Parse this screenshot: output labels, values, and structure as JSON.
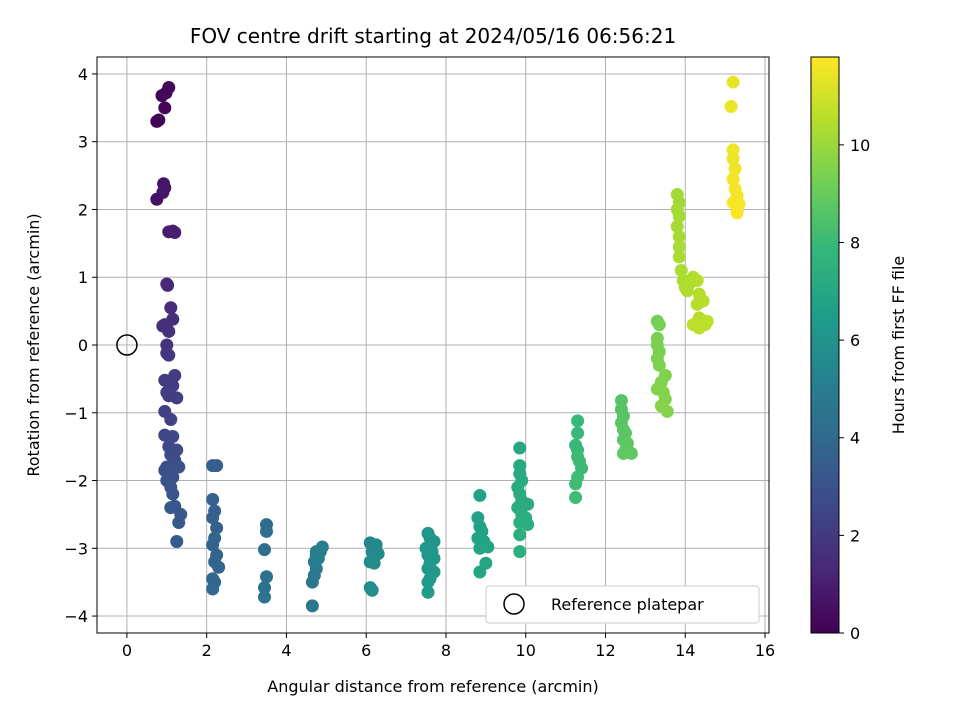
{
  "chart_data": {
    "type": "scatter",
    "title": "FOV centre drift starting at 2024/05/16 06:56:21",
    "xlabel": "Angular distance from reference (arcmin)",
    "ylabel": "Rotation from reference (arcmin)",
    "xlim": [
      -0.75,
      16.1
    ],
    "ylim": [
      -4.25,
      4.25
    ],
    "xticks": [
      0,
      2,
      4,
      6,
      8,
      10,
      12,
      14,
      16
    ],
    "yticks": [
      -4,
      -3,
      -2,
      -1,
      0,
      1,
      2,
      3,
      4
    ],
    "grid": true,
    "legend": {
      "placement": "lower-right",
      "label": "Reference platepar"
    },
    "reference_point": {
      "x": 0,
      "y": 0
    },
    "colorbar": {
      "label": "Hours from first FF file",
      "range": [
        0,
        11.8
      ],
      "ticks": [
        0,
        2,
        4,
        6,
        8,
        10
      ],
      "colormap": "viridis",
      "stops": [
        "#440154",
        "#482878",
        "#3e4989",
        "#31688e",
        "#26828e",
        "#1f9e89",
        "#35b779",
        "#6ece58",
        "#b5de2b",
        "#fde725"
      ]
    },
    "points": [
      [
        0.75,
        3.3,
        0.05
      ],
      [
        0.8,
        3.32,
        0.08
      ],
      [
        0.88,
        3.68,
        0.12
      ],
      [
        0.95,
        3.5,
        0.18
      ],
      [
        1.05,
        3.8,
        0.25
      ],
      [
        0.98,
        3.72,
        0.2
      ],
      [
        0.75,
        2.15,
        0.55
      ],
      [
        0.92,
        2.38,
        0.6
      ],
      [
        0.9,
        2.25,
        0.65
      ],
      [
        0.95,
        2.32,
        0.7
      ],
      [
        1.05,
        1.67,
        0.95
      ],
      [
        1.15,
        1.68,
        1.0
      ],
      [
        1.2,
        1.66,
        1.05
      ],
      [
        1.02,
        0.88,
        1.3
      ],
      [
        1.0,
        0.9,
        1.35
      ],
      [
        1.1,
        0.55,
        1.5
      ],
      [
        1.15,
        0.38,
        1.55
      ],
      [
        0.9,
        0.28,
        1.6
      ],
      [
        1.0,
        0.25,
        1.65
      ],
      [
        1.05,
        0.2,
        1.7
      ],
      [
        0.95,
        0.3,
        1.62
      ],
      [
        1.0,
        0.0,
        1.8
      ],
      [
        1.05,
        -0.15,
        1.85
      ],
      [
        1.0,
        -0.12,
        1.88
      ],
      [
        0.95,
        -0.52,
        2.0
      ],
      [
        1.1,
        -0.55,
        2.05
      ],
      [
        1.2,
        -0.45,
        2.1
      ],
      [
        1.15,
        -0.6,
        2.12
      ],
      [
        1.05,
        -0.75,
        2.15
      ],
      [
        1.0,
        -0.7,
        2.18
      ],
      [
        1.25,
        -0.78,
        2.2
      ],
      [
        0.95,
        -0.98,
        2.3
      ],
      [
        1.1,
        -1.1,
        2.35
      ],
      [
        0.95,
        -1.33,
        2.5
      ],
      [
        1.15,
        -1.35,
        2.55
      ],
      [
        1.05,
        -1.5,
        2.6
      ],
      [
        1.25,
        -1.55,
        2.65
      ],
      [
        1.1,
        -1.62,
        2.7
      ],
      [
        1.2,
        -1.7,
        2.72
      ],
      [
        1.0,
        -1.8,
        2.75
      ],
      [
        0.95,
        -1.85,
        2.85
      ],
      [
        1.05,
        -1.9,
        2.9
      ],
      [
        1.15,
        -1.95,
        2.92
      ],
      [
        1.3,
        -1.8,
        2.95
      ],
      [
        1.2,
        -1.75,
        2.88
      ],
      [
        1.0,
        -2.0,
        3.0
      ],
      [
        1.1,
        -2.1,
        3.05
      ],
      [
        1.15,
        -2.2,
        3.1
      ],
      [
        1.2,
        -2.38,
        3.15
      ],
      [
        1.1,
        -2.4,
        3.2
      ],
      [
        1.35,
        -2.5,
        3.25
      ],
      [
        1.3,
        -2.62,
        3.3
      ],
      [
        1.25,
        -2.9,
        3.35
      ],
      [
        2.15,
        -1.78,
        3.55
      ],
      [
        2.25,
        -1.78,
        3.58
      ],
      [
        2.15,
        -2.28,
        3.62
      ],
      [
        2.2,
        -2.45,
        3.65
      ],
      [
        2.15,
        -2.55,
        3.7
      ],
      [
        2.25,
        -2.7,
        3.72
      ],
      [
        2.2,
        -2.85,
        3.75
      ],
      [
        2.15,
        -2.95,
        3.78
      ],
      [
        2.25,
        -3.1,
        3.8
      ],
      [
        2.2,
        -3.2,
        3.82
      ],
      [
        2.3,
        -3.28,
        3.85
      ],
      [
        2.15,
        -3.45,
        3.88
      ],
      [
        2.2,
        -3.5,
        3.9
      ],
      [
        2.15,
        -3.6,
        3.92
      ],
      [
        3.5,
        -2.65,
        4.2
      ],
      [
        3.5,
        -2.75,
        4.25
      ],
      [
        3.45,
        -3.02,
        4.3
      ],
      [
        3.5,
        -3.42,
        4.35
      ],
      [
        3.45,
        -3.58,
        4.4
      ],
      [
        3.45,
        -3.72,
        4.45
      ],
      [
        4.65,
        -3.85,
        4.7
      ],
      [
        4.65,
        -3.5,
        4.75
      ],
      [
        4.7,
        -3.4,
        4.8
      ],
      [
        4.75,
        -3.3,
        4.85
      ],
      [
        4.7,
        -3.2,
        4.9
      ],
      [
        4.75,
        -3.1,
        4.95
      ],
      [
        4.85,
        -3.05,
        5.0
      ],
      [
        4.9,
        -2.98,
        5.05
      ],
      [
        4.75,
        -3.05,
        5.08
      ],
      [
        4.8,
        -3.15,
        5.1
      ],
      [
        6.1,
        -2.92,
        5.5
      ],
      [
        6.15,
        -3.05,
        5.55
      ],
      [
        6.2,
        -3.1,
        5.6
      ],
      [
        6.25,
        -2.95,
        5.62
      ],
      [
        6.3,
        -3.08,
        5.65
      ],
      [
        6.1,
        -3.2,
        5.68
      ],
      [
        6.2,
        -3.22,
        5.7
      ],
      [
        6.1,
        -3.58,
        5.75
      ],
      [
        6.15,
        -3.62,
        5.8
      ],
      [
        7.55,
        -2.78,
        6.1
      ],
      [
        7.6,
        -2.85,
        6.12
      ],
      [
        7.7,
        -2.9,
        6.15
      ],
      [
        7.5,
        -3.0,
        6.18
      ],
      [
        7.65,
        -3.05,
        6.2
      ],
      [
        7.55,
        -3.1,
        6.22
      ],
      [
        7.7,
        -3.15,
        6.25
      ],
      [
        7.6,
        -3.22,
        6.28
      ],
      [
        7.55,
        -3.3,
        6.3
      ],
      [
        7.7,
        -3.35,
        6.32
      ],
      [
        7.6,
        -3.45,
        6.35
      ],
      [
        7.55,
        -3.5,
        6.38
      ],
      [
        7.55,
        -3.65,
        6.4
      ],
      [
        8.85,
        -2.22,
        6.7
      ],
      [
        8.8,
        -2.55,
        6.72
      ],
      [
        8.85,
        -2.68,
        6.75
      ],
      [
        8.9,
        -2.75,
        6.78
      ],
      [
        8.8,
        -2.85,
        6.8
      ],
      [
        8.95,
        -2.9,
        6.82
      ],
      [
        9.05,
        -2.98,
        6.85
      ],
      [
        8.85,
        -3.0,
        6.88
      ],
      [
        9.0,
        -3.22,
        6.9
      ],
      [
        8.85,
        -3.35,
        6.92
      ],
      [
        9.85,
        -1.52,
        7.1
      ],
      [
        9.85,
        -1.78,
        7.12
      ],
      [
        9.85,
        -1.9,
        7.15
      ],
      [
        9.9,
        -2.0,
        7.18
      ],
      [
        9.8,
        -2.1,
        7.2
      ],
      [
        9.85,
        -2.2,
        7.22
      ],
      [
        9.9,
        -2.3,
        7.25
      ],
      [
        10.05,
        -2.35,
        7.28
      ],
      [
        9.8,
        -2.4,
        7.3
      ],
      [
        9.9,
        -2.5,
        7.32
      ],
      [
        10.0,
        -2.55,
        7.35
      ],
      [
        9.85,
        -2.62,
        7.38
      ],
      [
        10.05,
        -2.65,
        7.4
      ],
      [
        9.85,
        -2.8,
        7.42
      ],
      [
        9.85,
        -3.05,
        7.45
      ],
      [
        11.3,
        -1.12,
        7.9
      ],
      [
        11.3,
        -1.3,
        7.92
      ],
      [
        11.25,
        -1.48,
        7.95
      ],
      [
        11.3,
        -1.55,
        7.98
      ],
      [
        11.3,
        -1.65,
        8.0
      ],
      [
        11.35,
        -1.72,
        8.02
      ],
      [
        11.4,
        -1.82,
        8.05
      ],
      [
        11.3,
        -1.95,
        8.08
      ],
      [
        11.25,
        -2.05,
        8.1
      ],
      [
        11.25,
        -2.25,
        8.12
      ],
      [
        12.4,
        -0.82,
        8.6
      ],
      [
        12.4,
        -0.95,
        8.62
      ],
      [
        12.45,
        -1.05,
        8.65
      ],
      [
        12.4,
        -1.15,
        8.68
      ],
      [
        12.45,
        -1.25,
        8.7
      ],
      [
        12.5,
        -1.3,
        8.72
      ],
      [
        12.45,
        -1.4,
        8.75
      ],
      [
        12.55,
        -1.45,
        8.78
      ],
      [
        12.5,
        -1.55,
        8.8
      ],
      [
        12.45,
        -1.6,
        8.82
      ],
      [
        12.65,
        -1.6,
        8.85
      ],
      [
        13.3,
        0.35,
        9.3
      ],
      [
        13.35,
        0.3,
        9.32
      ],
      [
        13.3,
        0.1,
        9.35
      ],
      [
        13.3,
        0.0,
        9.38
      ],
      [
        13.35,
        -0.1,
        9.4
      ],
      [
        13.3,
        -0.2,
        9.42
      ],
      [
        13.35,
        -0.3,
        9.45
      ],
      [
        13.5,
        -0.45,
        9.48
      ],
      [
        13.4,
        -0.55,
        9.5
      ],
      [
        13.3,
        -0.65,
        9.52
      ],
      [
        13.45,
        -0.7,
        9.55
      ],
      [
        13.5,
        -0.8,
        9.58
      ],
      [
        13.4,
        -0.9,
        9.6
      ],
      [
        13.55,
        -0.98,
        9.62
      ],
      [
        13.8,
        2.22,
        10.1
      ],
      [
        13.85,
        2.1,
        10.12
      ],
      [
        13.8,
        2.0,
        10.15
      ],
      [
        13.85,
        1.9,
        10.18
      ],
      [
        13.8,
        1.75,
        10.2
      ],
      [
        13.85,
        1.6,
        10.22
      ],
      [
        13.85,
        1.45,
        10.25
      ],
      [
        13.85,
        1.3,
        10.28
      ],
      [
        13.9,
        1.1,
        10.3
      ],
      [
        13.95,
        0.95,
        10.32
      ],
      [
        14.0,
        0.85,
        10.35
      ],
      [
        14.05,
        0.8,
        10.38
      ],
      [
        14.1,
        0.9,
        10.4
      ],
      [
        14.2,
        1.0,
        10.42
      ],
      [
        14.3,
        0.95,
        10.45
      ],
      [
        14.35,
        0.75,
        10.48
      ],
      [
        14.3,
        0.6,
        10.5
      ],
      [
        14.45,
        0.65,
        10.52
      ],
      [
        14.35,
        0.4,
        10.55
      ],
      [
        14.5,
        0.3,
        10.58
      ],
      [
        14.35,
        0.25,
        10.6
      ],
      [
        14.55,
        0.35,
        10.62
      ],
      [
        14.2,
        0.3,
        10.65
      ],
      [
        15.2,
        3.88,
        11.4
      ],
      [
        15.15,
        3.52,
        11.45
      ],
      [
        15.2,
        2.88,
        11.5
      ],
      [
        15.2,
        2.75,
        11.52
      ],
      [
        15.25,
        2.6,
        11.55
      ],
      [
        15.2,
        2.45,
        11.58
      ],
      [
        15.25,
        2.3,
        11.6
      ],
      [
        15.3,
        2.2,
        11.62
      ],
      [
        15.2,
        2.1,
        11.65
      ],
      [
        15.35,
        2.08,
        11.68
      ],
      [
        15.3,
        1.95,
        11.7
      ]
    ]
  }
}
